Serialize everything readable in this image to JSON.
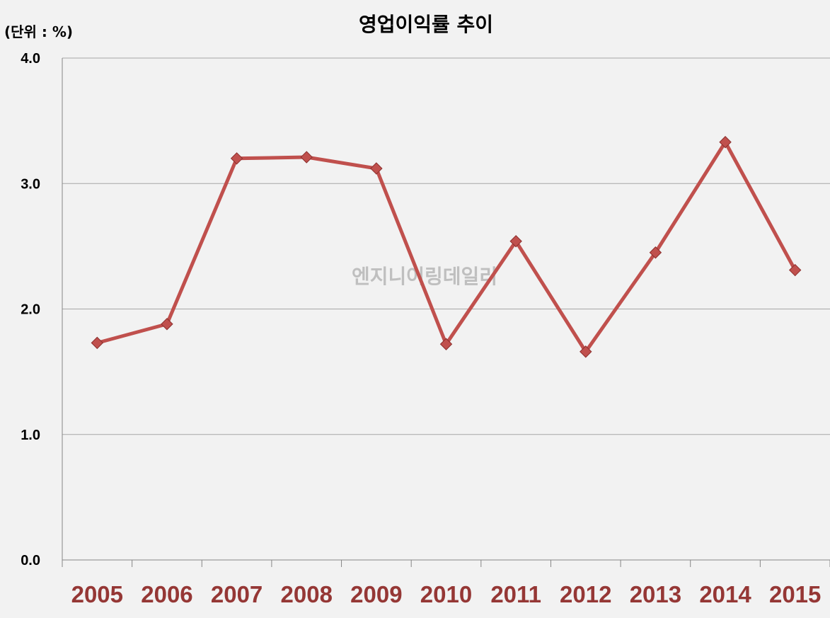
{
  "chart_data": {
    "type": "line",
    "title": "영업이익률 추이",
    "unit_label": "(단위 : %)",
    "watermark": "엔지니어링데일리",
    "categories": [
      "2005",
      "2006",
      "2007",
      "2008",
      "2009",
      "2010",
      "2011",
      "2012",
      "2013",
      "2014",
      "2015"
    ],
    "series": [
      {
        "values": [
          1.73,
          1.88,
          3.2,
          3.21,
          3.12,
          1.72,
          2.54,
          1.66,
          2.45,
          3.33,
          2.31
        ]
      }
    ],
    "ylim": [
      0,
      4
    ],
    "yticks": [
      "0.0",
      "1.0",
      "2.0",
      "3.0",
      "4.0"
    ],
    "grid": true,
    "legend": "none",
    "colors": {
      "line": "#c0504d",
      "marker": "#c0504d",
      "xtick": "#953735",
      "grid": "#a6a6a6",
      "background": "#f2f2f2"
    }
  }
}
